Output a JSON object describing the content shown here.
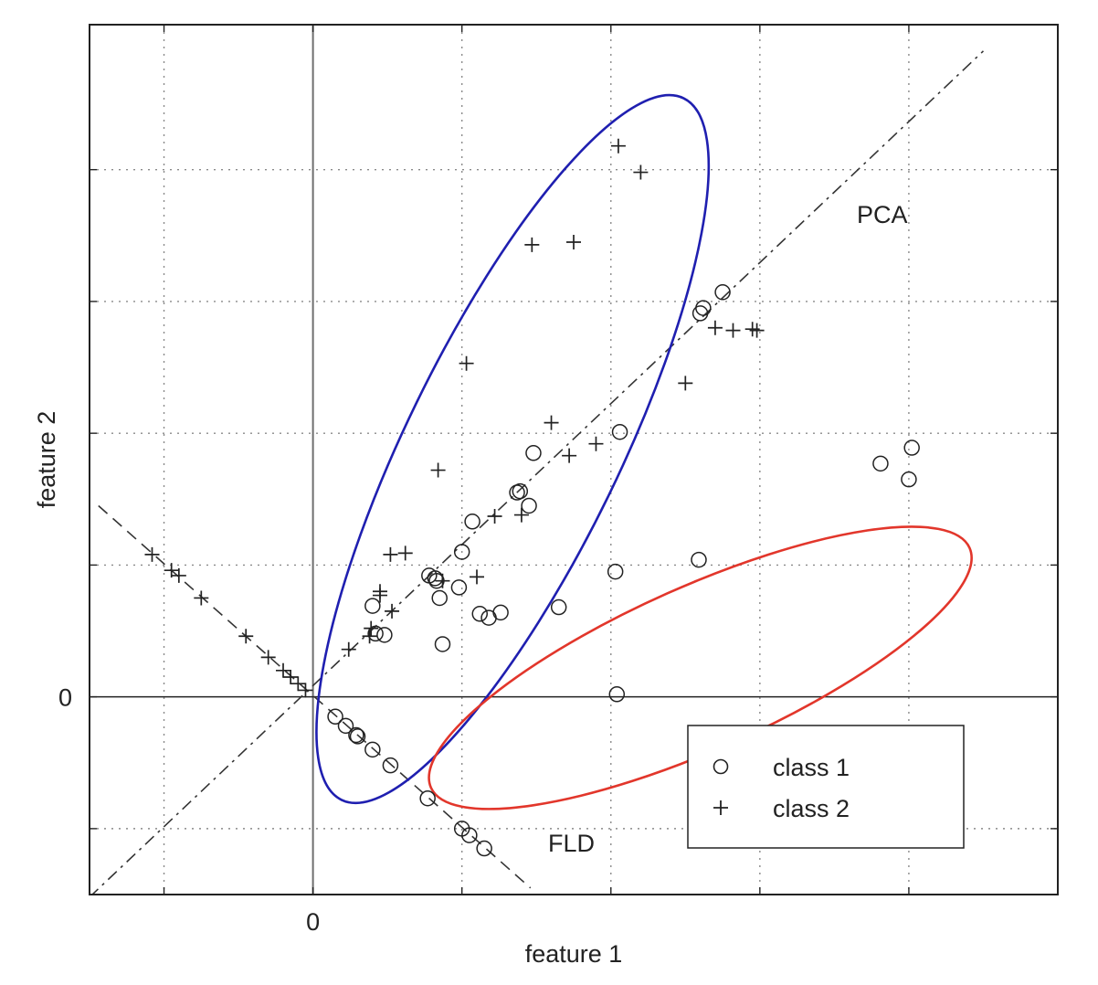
{
  "chart_data": {
    "type": "scatter",
    "xlabel": "feature 1",
    "ylabel": "feature 2",
    "xlim": [
      -1.5,
      5.0
    ],
    "ylim": [
      -1.5,
      5.1
    ],
    "x_ticks": [
      -1,
      0,
      1,
      2,
      3,
      4
    ],
    "y_ticks": [
      -1,
      0,
      1,
      2,
      3,
      4
    ],
    "x_tick_labels": [
      "",
      "0",
      "",
      "",
      "",
      ""
    ],
    "y_tick_labels": [
      "",
      "0",
      "",
      "",
      "",
      ""
    ],
    "grid": true,
    "annotations": [
      {
        "text": "PCA",
        "x": 3.7,
        "y": 3.55
      },
      {
        "text": "FLD",
        "x": 1.6,
        "y": -1.2
      }
    ],
    "reference_lines": [
      {
        "name": "PCA",
        "style": "dash-dot",
        "x": [
          -1.5,
          4.5
        ],
        "y": [
          -1.52,
          4.9
        ]
      },
      {
        "name": "FLD",
        "style": "dashed",
        "x": [
          -1.44,
          1.46
        ],
        "y": [
          1.45,
          -1.45
        ]
      }
    ],
    "ellipses": [
      {
        "class": "class 2",
        "color": "#1f1fb0",
        "cx": 1.34,
        "cy": 1.88,
        "rx": 2.78,
        "ry": 0.76,
        "angle_deg": 64
      },
      {
        "class": "class 1",
        "color": "#e2362b",
        "cx": 2.6,
        "cy": 0.22,
        "rx": 2.1,
        "ry": 0.58,
        "angle_deg": 24
      }
    ],
    "legend": {
      "position": "bottom-right",
      "entries": [
        "class 1",
        "class 2"
      ]
    },
    "series": [
      {
        "name": "class 1",
        "marker": "circle",
        "x": [
          0.42,
          0.78,
          0.83,
          1.37,
          1.48,
          0.87,
          0.85,
          0.48,
          0.4,
          1.0,
          0.82,
          0.98,
          1.18,
          1.26,
          2.03,
          2.59,
          3.81,
          4.02,
          4.0,
          1.65,
          2.06,
          2.04,
          1.39,
          1.07,
          1.12,
          0.15,
          0.22,
          0.3,
          0.29,
          0.4,
          0.52,
          0.77,
          1.0,
          1.05,
          1.15,
          2.6,
          2.62,
          2.75,
          1.45
        ],
        "y": [
          0.48,
          0.92,
          0.88,
          1.55,
          1.85,
          0.4,
          0.75,
          0.47,
          0.69,
          1.1,
          0.9,
          0.83,
          0.6,
          0.64,
          0.95,
          1.04,
          1.77,
          1.89,
          1.65,
          0.68,
          2.01,
          0.02,
          1.56,
          1.33,
          0.63,
          -0.15,
          -0.22,
          -0.3,
          -0.29,
          -0.4,
          -0.52,
          -0.77,
          -1.0,
          -1.05,
          -1.15,
          2.91,
          2.95,
          3.07,
          1.45
        ]
      },
      {
        "name": "class 2",
        "marker": "plus",
        "x": [
          2.05,
          2.2,
          1.47,
          1.75,
          1.03,
          0.84,
          0.52,
          0.39,
          0.24,
          0.38,
          0.53,
          0.62,
          0.45,
          0.45,
          1.22,
          1.4,
          1.72,
          1.9,
          1.6,
          2.5,
          2.82,
          2.95,
          -1.08,
          -0.95,
          -0.9,
          -0.75,
          -0.45,
          -0.3,
          -0.2,
          -0.15,
          -0.1,
          -0.05,
          2.7,
          2.98,
          0.87,
          1.1
        ],
        "y": [
          4.18,
          3.98,
          3.43,
          3.45,
          2.53,
          1.72,
          1.08,
          0.52,
          0.36,
          0.46,
          0.65,
          1.09,
          0.77,
          0.8,
          1.37,
          1.38,
          1.83,
          1.92,
          2.08,
          2.38,
          2.78,
          2.79,
          1.08,
          0.96,
          0.92,
          0.75,
          0.46,
          0.3,
          0.2,
          0.15,
          0.1,
          0.05,
          2.8,
          2.78,
          0.88,
          0.91
        ]
      }
    ]
  },
  "legend_labels": {
    "class1": "class 1",
    "class2": "class 2"
  },
  "colors": {
    "axes": "#222222",
    "grid": "#8a8a8a",
    "blue_ellipse": "#1f1fb0",
    "red_ellipse": "#e2362b"
  }
}
